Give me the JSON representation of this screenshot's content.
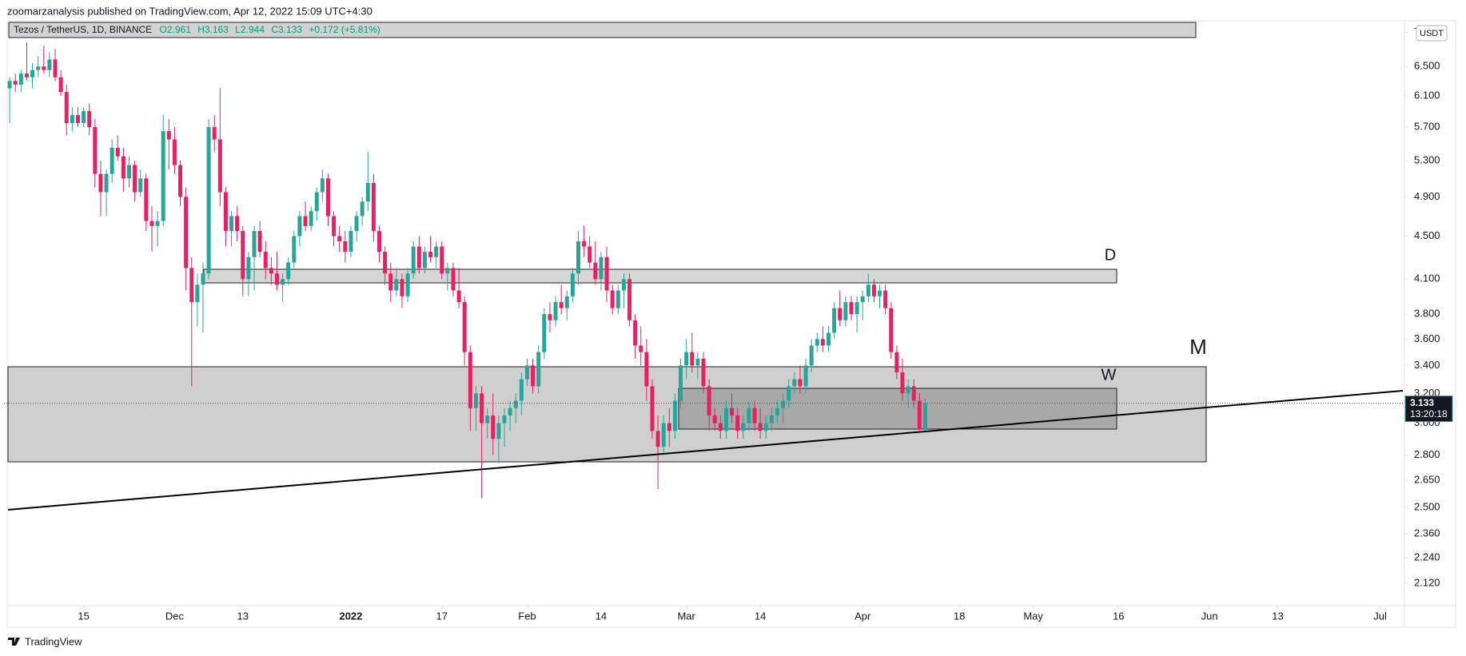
{
  "header": {
    "publisher": "zoomarzanalysis published on TradingView.com, Apr 12, 2022 15:09 UTC+4:30",
    "symbol": "Tezos / TetherUS, 1D, BINANCE",
    "open_label": "O2.961",
    "high_label": "H3.163",
    "low_label": "L2.944",
    "close_label": "C3.133",
    "change_label": "+0.172 (+5.81%)"
  },
  "footer": {
    "brand": "TradingView"
  },
  "chart_data": {
    "type": "candlestick",
    "currency": "USDT",
    "countdown": "13:20:18",
    "up_color": "#26a69a",
    "down_color": "#e91e63",
    "log_scale": true,
    "grid": false,
    "annotations": [
      "D",
      "W",
      "M"
    ],
    "xlim": [
      "2021-11-01",
      "2022-07-05"
    ],
    "xticks": [
      {
        "value": "2021-11-15",
        "label": "15"
      },
      {
        "value": "2021-12-01",
        "label": "Dec"
      },
      {
        "value": "2021-12-13",
        "label": "13"
      },
      {
        "value": "2022-01-01",
        "label": "2022"
      },
      {
        "value": "2022-01-17",
        "label": "17"
      },
      {
        "value": "2022-02-01",
        "label": "Feb"
      },
      {
        "value": "2022-02-14",
        "label": "14"
      },
      {
        "value": "2022-03-01",
        "label": "Mar"
      },
      {
        "value": "2022-03-14",
        "label": "14"
      },
      {
        "value": "2022-04-01",
        "label": "Apr"
      },
      {
        "value": "2022-04-18",
        "label": "18"
      },
      {
        "value": "2022-05-01",
        "label": "May"
      },
      {
        "value": "2022-05-16",
        "label": "16"
      },
      {
        "value": "2022-06-01",
        "label": "Jun"
      },
      {
        "value": "2022-06-13",
        "label": "13"
      },
      {
        "value": "2022-07-01",
        "label": "Jul"
      }
    ],
    "ylim": [
      2.02,
      7.14
    ],
    "yticks": [
      7,
      {
        "value": 6.5,
        "label": "6.500"
      },
      {
        "value": 6.1,
        "label": "6.100"
      },
      {
        "value": 5.7,
        "label": "5.700"
      },
      {
        "value": 5.3,
        "label": "5.300"
      },
      {
        "value": 4.9,
        "label": "4.900"
      },
      {
        "value": 4.5,
        "label": "4.500"
      },
      {
        "value": 4.1,
        "label": "4.100"
      },
      {
        "value": 3.8,
        "label": "3.800"
      },
      {
        "value": 3.6,
        "label": "3.600"
      },
      {
        "value": 3.4,
        "label": "3.400"
      },
      {
        "value": 3.2,
        "label": "3.200"
      },
      {
        "value": 3,
        "label": "3.000"
      },
      {
        "value": 2.8,
        "label": "2.800"
      },
      {
        "value": 2.65,
        "label": "2.650"
      },
      {
        "value": 2.5,
        "label": "2.500"
      },
      {
        "value": 2.36,
        "label": "2.360"
      },
      {
        "value": 2.24,
        "label": "2.240"
      },
      {
        "value": 2.12,
        "label": "2.120"
      }
    ],
    "x": [
      "2021-11-02",
      "2021-11-03",
      "2021-11-04",
      "2021-11-05",
      "2021-11-06",
      "2021-11-07",
      "2021-11-08",
      "2021-11-09",
      "2021-11-10",
      "2021-11-11",
      "2021-11-12",
      "2021-11-13",
      "2021-11-14",
      "2021-11-15",
      "2021-11-16",
      "2021-11-17",
      "2021-11-18",
      "2021-11-19",
      "2021-11-20",
      "2021-11-21",
      "2021-11-22",
      "2021-11-23",
      "2021-11-24",
      "2021-11-25",
      "2021-11-26",
      "2021-11-27",
      "2021-11-28",
      "2021-11-29",
      "2021-11-30",
      "2021-12-01",
      "2021-12-02",
      "2021-12-03",
      "2021-12-04",
      "2021-12-05",
      "2021-12-06",
      "2021-12-07",
      "2021-12-08",
      "2021-12-09",
      "2021-12-10",
      "2021-12-11",
      "2021-12-12",
      "2021-12-13",
      "2021-12-14",
      "2021-12-15",
      "2021-12-16",
      "2021-12-17",
      "2021-12-18",
      "2021-12-19",
      "2021-12-20",
      "2021-12-21",
      "2021-12-22",
      "2021-12-23",
      "2021-12-24",
      "2021-12-25",
      "2021-12-26",
      "2021-12-27",
      "2021-12-28",
      "2021-12-29",
      "2021-12-30",
      "2021-12-31",
      "2022-01-01",
      "2022-01-02",
      "2022-01-03",
      "2022-01-04",
      "2022-01-05",
      "2022-01-06",
      "2022-01-07",
      "2022-01-08",
      "2022-01-09",
      "2022-01-10",
      "2022-01-11",
      "2022-01-12",
      "2022-01-13",
      "2022-01-14",
      "2022-01-15",
      "2022-01-16",
      "2022-01-17",
      "2022-01-18",
      "2022-01-19",
      "2022-01-20",
      "2022-01-21",
      "2022-01-22",
      "2022-01-23",
      "2022-01-24",
      "2022-01-25",
      "2022-01-26",
      "2022-01-27",
      "2022-01-28",
      "2022-01-29",
      "2022-01-30",
      "2022-01-31",
      "2022-02-01",
      "2022-02-02",
      "2022-02-03",
      "2022-02-04",
      "2022-02-05",
      "2022-02-06",
      "2022-02-07",
      "2022-02-08",
      "2022-02-09",
      "2022-02-10",
      "2022-02-11",
      "2022-02-12",
      "2022-02-13",
      "2022-02-14",
      "2022-02-15",
      "2022-02-16",
      "2022-02-17",
      "2022-02-18",
      "2022-02-19",
      "2022-02-20",
      "2022-02-21",
      "2022-02-22",
      "2022-02-23",
      "2022-02-24",
      "2022-02-25",
      "2022-02-26",
      "2022-02-27",
      "2022-02-28",
      "2022-03-01",
      "2022-03-02",
      "2022-03-03",
      "2022-03-04",
      "2022-03-05",
      "2022-03-06",
      "2022-03-07",
      "2022-03-08",
      "2022-03-09",
      "2022-03-10",
      "2022-03-11",
      "2022-03-12",
      "2022-03-13",
      "2022-03-14",
      "2022-03-15",
      "2022-03-16",
      "2022-03-17",
      "2022-03-18",
      "2022-03-19",
      "2022-03-20",
      "2022-03-21",
      "2022-03-22",
      "2022-03-23",
      "2022-03-24",
      "2022-03-25",
      "2022-03-26",
      "2022-03-27",
      "2022-03-28",
      "2022-03-29",
      "2022-03-30",
      "2022-03-31",
      "2022-04-01",
      "2022-04-02",
      "2022-04-03",
      "2022-04-04",
      "2022-04-05",
      "2022-04-06",
      "2022-04-07",
      "2022-04-08",
      "2022-04-09",
      "2022-04-10",
      "2022-04-11",
      "2022-04-12"
    ],
    "open": [
      6.2,
      6.3,
      6.25,
      6.4,
      6.35,
      6.45,
      6.5,
      6.45,
      6.6,
      6.35,
      6.15,
      5.75,
      5.85,
      5.75,
      5.9,
      5.7,
      5.15,
      4.95,
      5.15,
      5.45,
      5.35,
      5.1,
      5.25,
      4.95,
      5.1,
      4.65,
      4.6,
      4.65,
      5.65,
      5.55,
      5.25,
      4.9,
      4.2,
      3.9,
      4.05,
      4.15,
      5.7,
      5.55,
      4.95,
      4.55,
      4.7,
      4.55,
      4.1,
      4.3,
      4.55,
      4.35,
      4.2,
      4.15,
      4.05,
      4.1,
      4.25,
      4.5,
      4.7,
      4.6,
      4.75,
      4.95,
      5.1,
      4.7,
      4.5,
      4.45,
      4.35,
      4.55,
      4.7,
      4.85,
      5.05,
      4.55,
      4.35,
      4.15,
      4.0,
      4.1,
      3.95,
      4.15,
      4.4,
      4.2,
      4.35,
      4.3,
      4.4,
      4.15,
      4.2,
      4.0,
      3.9,
      3.5,
      3.1,
      3.2,
      3.0,
      3.05,
      2.9,
      3.0,
      3.05,
      3.1,
      3.15,
      3.3,
      3.4,
      3.25,
      3.5,
      3.8,
      3.75,
      3.9,
      3.85,
      3.95,
      4.15,
      4.45,
      4.4,
      4.25,
      4.1,
      4.3,
      4.0,
      3.85,
      4.0,
      4.1,
      3.75,
      3.55,
      3.5,
      3.25,
      2.95,
      2.85,
      3.0,
      2.95,
      3.15,
      3.4,
      3.5,
      3.4,
      3.45,
      3.25,
      3.05,
      3.0,
      2.95,
      3.1,
      3.05,
      2.95,
      3.0,
      3.1,
      3.0,
      2.95,
      3.0,
      3.05,
      3.1,
      3.15,
      3.25,
      3.3,
      3.25,
      3.4,
      3.55,
      3.6,
      3.55,
      3.65,
      3.85,
      3.75,
      3.9,
      3.8,
      3.9,
      3.95,
      4.05,
      3.95,
      4.0,
      3.85,
      3.5,
      3.35,
      3.2,
      3.25,
      3.15,
      2.961
    ],
    "high": [
      6.35,
      6.4,
      6.45,
      6.85,
      6.55,
      6.65,
      6.8,
      6.7,
      6.75,
      6.45,
      6.25,
      5.95,
      5.95,
      5.95,
      6.0,
      5.8,
      5.3,
      5.2,
      5.55,
      5.6,
      5.45,
      5.35,
      5.3,
      5.2,
      5.15,
      4.8,
      4.75,
      5.85,
      5.8,
      5.7,
      5.3,
      5.0,
      4.3,
      4.15,
      4.25,
      5.8,
      5.85,
      6.2,
      5.0,
      4.75,
      4.8,
      4.6,
      4.35,
      4.6,
      4.65,
      4.45,
      4.3,
      4.35,
      4.15,
      4.3,
      4.55,
      4.75,
      4.85,
      4.8,
      5.0,
      5.2,
      5.15,
      4.75,
      4.6,
      4.55,
      4.6,
      4.75,
      4.9,
      5.4,
      5.15,
      4.6,
      4.4,
      4.25,
      4.2,
      4.15,
      4.2,
      4.45,
      4.5,
      4.4,
      4.5,
      4.45,
      4.45,
      4.25,
      4.25,
      4.2,
      3.95,
      3.55,
      3.25,
      3.25,
      3.1,
      3.2,
      3.05,
      3.1,
      3.15,
      3.2,
      3.35,
      3.45,
      3.45,
      3.55,
      3.85,
      3.9,
      3.95,
      4.05,
      4.0,
      4.2,
      4.55,
      4.6,
      4.5,
      4.45,
      4.35,
      4.4,
      4.05,
      4.05,
      4.15,
      4.15,
      3.8,
      3.7,
      3.6,
      3.3,
      3.05,
      3.05,
      3.1,
      3.2,
      3.45,
      3.6,
      3.65,
      3.5,
      3.5,
      3.3,
      3.1,
      3.05,
      3.15,
      3.2,
      3.1,
      3.05,
      3.15,
      3.15,
      3.1,
      3.05,
      3.1,
      3.15,
      3.2,
      3.3,
      3.35,
      3.4,
      3.45,
      3.6,
      3.65,
      3.7,
      3.7,
      3.9,
      4.0,
      3.95,
      3.95,
      3.95,
      4.0,
      4.15,
      4.1,
      4.05,
      4.05,
      3.9,
      3.55,
      3.45,
      3.3,
      3.3,
      3.2,
      3.163
    ],
    "low": [
      5.75,
      6.15,
      6.15,
      6.3,
      6.2,
      6.35,
      6.4,
      6.35,
      6.3,
      6.1,
      5.6,
      5.65,
      5.7,
      5.7,
      5.6,
      5.0,
      4.7,
      4.7,
      5.05,
      5.3,
      4.95,
      5.0,
      4.85,
      4.9,
      4.55,
      4.35,
      4.4,
      4.6,
      5.2,
      5.15,
      4.8,
      4.0,
      3.25,
      3.7,
      3.65,
      4.1,
      5.4,
      4.8,
      4.4,
      4.4,
      4.45,
      3.95,
      3.95,
      4.0,
      4.3,
      4.1,
      4.05,
      4.0,
      3.9,
      4.05,
      4.2,
      4.4,
      4.55,
      4.55,
      4.65,
      4.85,
      4.6,
      4.4,
      4.35,
      4.25,
      4.3,
      4.45,
      4.6,
      4.75,
      4.45,
      4.25,
      4.05,
      3.9,
      3.95,
      3.85,
      3.9,
      4.1,
      4.15,
      4.15,
      4.25,
      4.2,
      4.1,
      4.0,
      3.95,
      3.85,
      3.4,
      2.95,
      2.95,
      2.55,
      2.9,
      2.8,
      2.75,
      2.85,
      2.95,
      3.0,
      3.05,
      3.25,
      3.2,
      3.2,
      3.45,
      3.65,
      3.7,
      3.8,
      3.75,
      3.9,
      4.05,
      4.3,
      4.2,
      4.05,
      4.0,
      3.9,
      3.8,
      3.8,
      3.85,
      3.7,
      3.45,
      3.4,
      3.15,
      2.9,
      2.6,
      2.8,
      2.85,
      2.9,
      3.1,
      3.3,
      3.35,
      3.3,
      3.2,
      2.95,
      2.95,
      2.9,
      2.9,
      3.0,
      2.9,
      2.9,
      2.95,
      2.95,
      2.9,
      2.9,
      2.95,
      3.0,
      3.0,
      3.1,
      3.2,
      3.2,
      3.2,
      3.35,
      3.5,
      3.5,
      3.5,
      3.6,
      3.7,
      3.7,
      3.75,
      3.65,
      3.75,
      3.9,
      3.9,
      3.85,
      3.8,
      3.45,
      3.3,
      3.15,
      3.1,
      3.1,
      2.95,
      2.944
    ],
    "close": [
      6.3,
      6.25,
      6.4,
      6.35,
      6.45,
      6.5,
      6.45,
      6.6,
      6.35,
      6.15,
      5.75,
      5.85,
      5.75,
      5.9,
      5.7,
      5.15,
      4.95,
      5.15,
      5.45,
      5.35,
      5.1,
      5.25,
      4.95,
      5.1,
      4.65,
      4.6,
      4.65,
      5.65,
      5.55,
      5.25,
      4.9,
      4.2,
      3.9,
      4.05,
      4.15,
      5.7,
      5.55,
      4.95,
      4.55,
      4.7,
      4.55,
      4.1,
      4.3,
      4.55,
      4.35,
      4.2,
      4.15,
      4.05,
      4.1,
      4.25,
      4.5,
      4.7,
      4.6,
      4.75,
      4.95,
      5.1,
      4.7,
      4.5,
      4.45,
      4.35,
      4.55,
      4.7,
      4.85,
      5.05,
      4.55,
      4.35,
      4.15,
      4.0,
      4.1,
      3.95,
      4.15,
      4.4,
      4.2,
      4.35,
      4.3,
      4.4,
      4.15,
      4.2,
      4.0,
      3.9,
      3.5,
      3.1,
      3.2,
      3.0,
      3.05,
      2.9,
      3.0,
      3.05,
      3.1,
      3.15,
      3.3,
      3.4,
      3.25,
      3.5,
      3.8,
      3.75,
      3.9,
      3.85,
      3.95,
      4.15,
      4.45,
      4.4,
      4.25,
      4.1,
      4.3,
      4.0,
      3.85,
      4.0,
      4.1,
      3.75,
      3.55,
      3.5,
      3.25,
      2.95,
      2.85,
      3.0,
      2.95,
      3.15,
      3.4,
      3.5,
      3.4,
      3.45,
      3.25,
      3.05,
      3.0,
      2.95,
      3.1,
      3.05,
      2.95,
      3.0,
      3.1,
      3.0,
      2.95,
      3.0,
      3.05,
      3.1,
      3.15,
      3.25,
      3.3,
      3.25,
      3.4,
      3.55,
      3.6,
      3.55,
      3.65,
      3.85,
      3.75,
      3.9,
      3.8,
      3.9,
      3.95,
      4.05,
      3.95,
      4.0,
      3.85,
      3.5,
      3.35,
      3.2,
      3.25,
      3.15,
      2.96,
      3.133
    ]
  }
}
